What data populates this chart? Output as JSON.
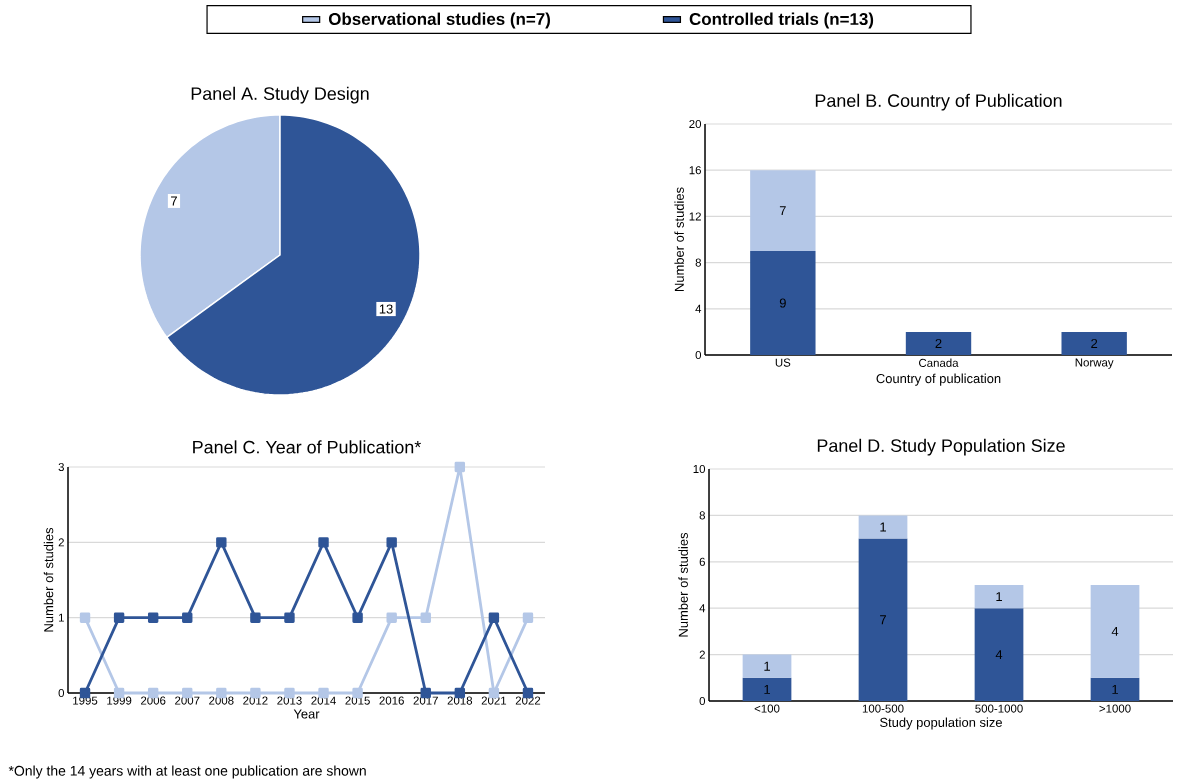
{
  "chart_data": [
    {
      "type": "pie",
      "title": "Panel A. Study Design",
      "categories": [
        "Observational studies (n=7)",
        "Controlled trials (n=13)"
      ],
      "values": [
        7,
        13
      ],
      "colors": [
        "#b4c7e7",
        "#2f5597"
      ],
      "data_labels": true,
      "legend": "top"
    },
    {
      "type": "bar",
      "title": "Panel B. Country of Publication",
      "xlabel": "Country of publication",
      "ylabel": "Number of studies",
      "categories": [
        "US",
        "Canada",
        "Norway"
      ],
      "stacked": true,
      "series": [
        {
          "color": "#2f5597",
          "values": [
            9,
            2,
            2
          ],
          "value_labels": [
            "9",
            "2",
            "2"
          ]
        },
        {
          "color": "#b4c7e7",
          "values": [
            7,
            0,
            0
          ],
          "value_labels": [
            "7",
            null,
            null
          ]
        }
      ],
      "ylim": [
        0,
        20
      ],
      "yticks": [
        0,
        4,
        8,
        12,
        16,
        20
      ],
      "grid": "y"
    },
    {
      "type": "line",
      "title": "Panel C. Year of Publication*",
      "xlabel": "Year",
      "ylabel": "Number of studies",
      "categories": [
        "1995",
        "1999",
        "2006",
        "2007",
        "2008",
        "2012",
        "2013",
        "2014",
        "2015",
        "2016",
        "2017",
        "2018",
        "2021",
        "2022"
      ],
      "series": [
        {
          "color": "#b4c7e7",
          "values": [
            1,
            0,
            0,
            0,
            0,
            0,
            0,
            0,
            0,
            1,
            1,
            3,
            0,
            1
          ]
        },
        {
          "color": "#2f5597",
          "values": [
            0,
            1,
            1,
            1,
            2,
            1,
            1,
            2,
            1,
            2,
            0,
            0,
            1,
            0
          ]
        }
      ],
      "marker": "square",
      "ylim": [
        0,
        3
      ],
      "yticks": [
        0,
        1,
        2,
        3
      ],
      "grid": "y",
      "annotations": [
        "*Only the 14 years with at least one publication are shown"
      ]
    },
    {
      "type": "bar",
      "title": "Panel D. Study Population Size",
      "xlabel": "Study population size",
      "ylabel": "Number of studies",
      "categories": [
        "<100",
        "100-500",
        "500-1000",
        ">1000"
      ],
      "stacked": true,
      "series": [
        {
          "color": "#2f5597",
          "values": [
            1,
            7,
            4,
            1
          ]
        },
        {
          "color": "#b4c7e7",
          "values": [
            1,
            1,
            1,
            4
          ]
        }
      ],
      "ylim": [
        0,
        10
      ],
      "yticks": [
        0,
        2,
        4,
        6,
        8,
        10
      ],
      "grid": "y",
      "data_labels": true
    }
  ]
}
